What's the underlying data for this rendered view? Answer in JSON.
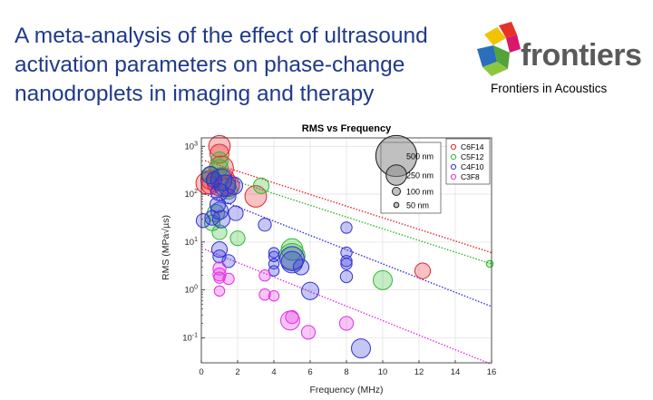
{
  "header": {
    "title": "A meta-analysis of the effect of ultrasound activation parameters on phase-change nanodroplets in imaging and therapy",
    "brand_name": "frontiers",
    "journal": "Frontiers in Acoustics"
  },
  "colors": {
    "title": "#1f3a8a",
    "C6F14": "#e8242a",
    "C5F12": "#2fb92f",
    "C4F10": "#3232d8",
    "C3F8": "#e22fe2"
  },
  "chart_data": {
    "type": "scatter",
    "title": "RMS vs Frequency",
    "xlabel": "Frequency (MHz)",
    "ylabel": "RMS (MPa√µs)",
    "xlim": [
      0,
      16
    ],
    "ylog": true,
    "ylim": [
      0.03,
      1500
    ],
    "xticks": [
      "0",
      "2",
      "4",
      "6",
      "8",
      "10",
      "12",
      "14",
      "16"
    ],
    "yticks": [
      {
        "base": "10",
        "exp": "-1",
        "value": 0.1
      },
      {
        "base": "10",
        "exp": "0",
        "value": 1
      },
      {
        "base": "10",
        "exp": "1",
        "value": 10
      },
      {
        "base": "10",
        "exp": "2",
        "value": 100
      },
      {
        "base": "10",
        "exp": "3",
        "value": 1000
      }
    ],
    "grid": true,
    "size_legend": [
      {
        "label": "500 nm",
        "d": 500
      },
      {
        "label": "250 nm",
        "d": 250
      },
      {
        "label": "100 nm",
        "d": 100
      },
      {
        "label": "50 nm",
        "d": 50
      }
    ],
    "series": [
      {
        "name": "C6F14",
        "color": "#e8242a",
        "fit": [
          [
            0.2,
            500
          ],
          [
            16,
            6
          ]
        ],
        "points": [
          [
            1.0,
            1000,
            250
          ],
          [
            1.0,
            700,
            220
          ],
          [
            1.1,
            350,
            280
          ],
          [
            0.5,
            200,
            220
          ],
          [
            0.3,
            170,
            250
          ],
          [
            0.5,
            150,
            200
          ],
          [
            1.1,
            180,
            330
          ],
          [
            1.5,
            150,
            250
          ],
          [
            3.0,
            90,
            250
          ],
          [
            12.2,
            2.5,
            180
          ]
        ]
      },
      {
        "name": "C5F12",
        "color": "#2fb92f",
        "fit": [
          [
            0.2,
            300
          ],
          [
            16,
            3.5
          ]
        ],
        "points": [
          [
            1.0,
            500,
            200
          ],
          [
            1.0,
            350,
            200
          ],
          [
            0.5,
            250,
            180
          ],
          [
            1.0,
            200,
            220
          ],
          [
            1.5,
            120,
            200
          ],
          [
            3.3,
            150,
            180
          ],
          [
            0.8,
            40,
            200
          ],
          [
            0.6,
            25,
            180
          ],
          [
            1.0,
            16,
            170
          ],
          [
            2.0,
            12,
            170
          ],
          [
            5.0,
            7,
            250
          ],
          [
            5.0,
            5,
            300
          ],
          [
            10.0,
            1.6,
            220
          ],
          [
            15.9,
            3.5,
            80
          ]
        ]
      },
      {
        "name": "C4F10",
        "color": "#3232d8",
        "fit": [
          [
            0.2,
            100
          ],
          [
            16,
            0.45
          ]
        ],
        "points": [
          [
            0.5,
            250,
            200
          ],
          [
            0.7,
            200,
            180
          ],
          [
            1.1,
            200,
            250
          ],
          [
            1.3,
            150,
            250
          ],
          [
            1.8,
            150,
            200
          ],
          [
            1.0,
            110,
            200
          ],
          [
            1.5,
            90,
            170
          ],
          [
            0.9,
            60,
            180
          ],
          [
            1.0,
            45,
            200
          ],
          [
            0.1,
            28,
            160
          ],
          [
            0.6,
            32,
            170
          ],
          [
            1.1,
            30,
            200
          ],
          [
            1.9,
            40,
            170
          ],
          [
            3.5,
            23,
            150
          ],
          [
            1.0,
            7,
            180
          ],
          [
            1.0,
            5,
            150
          ],
          [
            1.5,
            4,
            150
          ],
          [
            4.0,
            6,
            120
          ],
          [
            4.0,
            5,
            120
          ],
          [
            4.0,
            3.5,
            120
          ],
          [
            4.0,
            2.5,
            120
          ],
          [
            5.0,
            4.5,
            280
          ],
          [
            5.0,
            3.8,
            250
          ],
          [
            5.5,
            3,
            180
          ],
          [
            6.0,
            0.95,
            200
          ],
          [
            8.0,
            20,
            130
          ],
          [
            8.0,
            6,
            130
          ],
          [
            8.0,
            4,
            130
          ],
          [
            8.0,
            3.5,
            130
          ],
          [
            8.0,
            1.9,
            140
          ],
          [
            8.8,
            0.06,
            220
          ]
        ]
      },
      {
        "name": "C3F8",
        "color": "#e22fe2",
        "fit": [
          [
            0.2,
            7
          ],
          [
            16,
            0.028
          ]
        ],
        "points": [
          [
            1.0,
            2.8,
            150
          ],
          [
            1.0,
            2.1,
            150
          ],
          [
            1.0,
            1.8,
            130
          ],
          [
            1.5,
            1.7,
            130
          ],
          [
            1.0,
            0.95,
            120
          ],
          [
            3.5,
            2,
            130
          ],
          [
            3.5,
            0.8,
            130
          ],
          [
            4.0,
            0.75,
            120
          ],
          [
            4.9,
            0.23,
            220
          ],
          [
            5.0,
            0.27,
            150
          ],
          [
            5.9,
            0.13,
            160
          ],
          [
            8.0,
            0.2,
            160
          ]
        ]
      }
    ]
  }
}
